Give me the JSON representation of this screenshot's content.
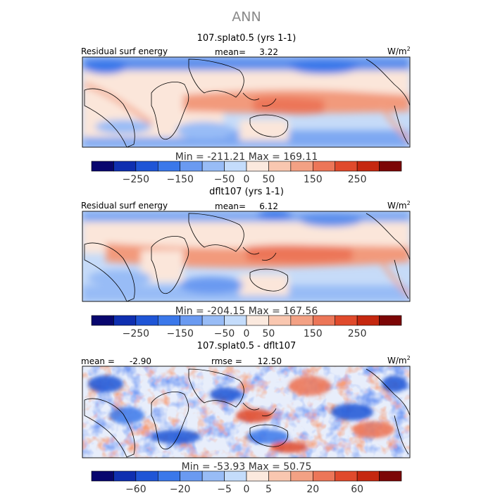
{
  "title": "ANN",
  "chart_data": [
    {
      "type": "heatmap",
      "title": "107.splat0.5 (yrs 1-1)",
      "field_label": "Residual surf energy",
      "mean_label": "mean=",
      "mean_value": "3.22",
      "units_base": "W/m",
      "units_exp": "2",
      "minmax": "Min = -211.21 Max = 169.11",
      "min": -211.21,
      "max": 169.11,
      "colorbar": {
        "colors": [
          "#08066e",
          "#0f2fb0",
          "#1f55d6",
          "#3b78ea",
          "#6a9af1",
          "#98bcf6",
          "#c4dcfb",
          "#fbe9de",
          "#f9c7b0",
          "#f3a184",
          "#ec7658",
          "#e04a2c",
          "#c52810",
          "#7c0606"
        ],
        "tick_labels": [
          "-250",
          "-150",
          "-50",
          "0",
          "50",
          "150",
          "250"
        ]
      }
    },
    {
      "type": "heatmap",
      "title": "dflt107 (yrs 1-1)",
      "field_label": "Residual surf energy",
      "mean_label": "mean=",
      "mean_value": "6.12",
      "units_base": "W/m",
      "units_exp": "2",
      "minmax": "Min = -204.15 Max = 167.56",
      "min": -204.15,
      "max": 167.56,
      "colorbar": {
        "colors": [
          "#08066e",
          "#0f2fb0",
          "#1f55d6",
          "#3b78ea",
          "#6a9af1",
          "#98bcf6",
          "#c4dcfb",
          "#fbe9de",
          "#f9c7b0",
          "#f3a184",
          "#ec7658",
          "#e04a2c",
          "#c52810",
          "#7c0606"
        ],
        "tick_labels": [
          "-250",
          "-150",
          "-50",
          "0",
          "50",
          "150",
          "250"
        ]
      }
    },
    {
      "type": "heatmap",
      "title": "107.splat0.5 - dflt107",
      "mean_label": "mean =",
      "mean_value": "-2.90",
      "rmse_label": "rmse =",
      "rmse_value": "12.50",
      "units_base": "W/m",
      "units_exp": "2",
      "minmax": "Min = -53.93 Max = 50.75",
      "min": -53.93,
      "max": 50.75,
      "colorbar": {
        "colors": [
          "#08066e",
          "#0f2fb0",
          "#1f55d6",
          "#3b78ea",
          "#6a9af1",
          "#98bcf6",
          "#c4dcfb",
          "#fbe9de",
          "#f9c7b0",
          "#f3a184",
          "#ec7658",
          "#e04a2c",
          "#c52810",
          "#7c0606"
        ],
        "tick_labels": [
          "-60",
          "-20",
          "-5",
          "0",
          "5",
          "20",
          "60"
        ]
      }
    }
  ]
}
